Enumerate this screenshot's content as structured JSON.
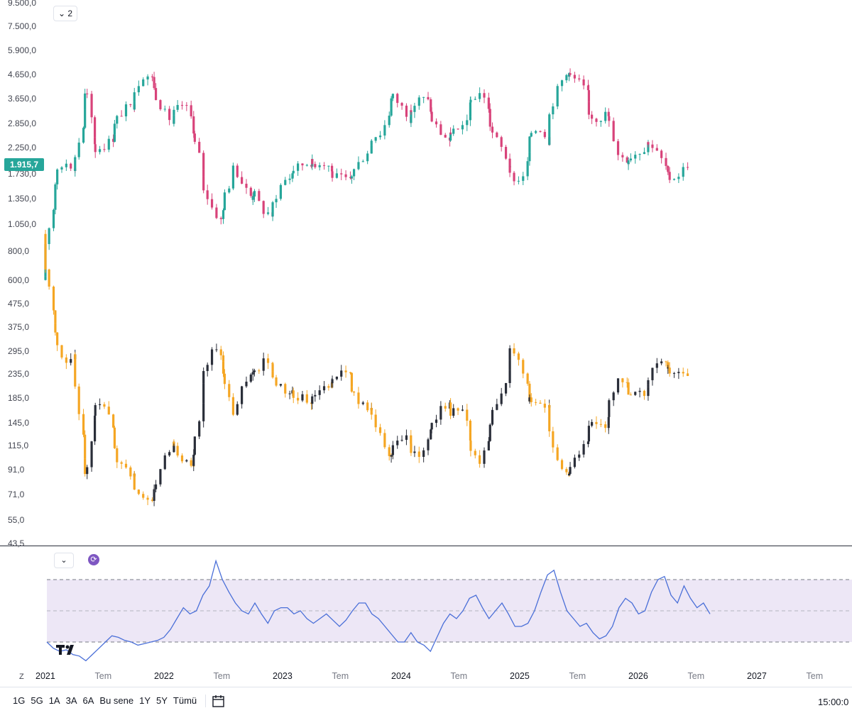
{
  "toolbar": {
    "series_count_label": "2",
    "last_price_label": "1.915,7"
  },
  "axis": {
    "y_ticks": [
      "9.500,0",
      "7.500,0",
      "5.900,0",
      "4.650,0",
      "3.650,0",
      "2.850,0",
      "2.250,0",
      "1.730,0",
      "1.350,0",
      "1.050,0",
      "800,0",
      "600,0",
      "475,0",
      "375,0",
      "295,0",
      "235,0",
      "185,0",
      "145,0",
      "115,0",
      "91,0",
      "71,0",
      "55,0",
      "43,5"
    ],
    "x_ticks": [
      {
        "label": "2021",
        "kind": "year"
      },
      {
        "label": "Tem",
        "kind": "month"
      },
      {
        "label": "2022",
        "kind": "year"
      },
      {
        "label": "Tem",
        "kind": "month"
      },
      {
        "label": "2023",
        "kind": "year"
      },
      {
        "label": "Tem",
        "kind": "month"
      },
      {
        "label": "2024",
        "kind": "year"
      },
      {
        "label": "Tem",
        "kind": "month"
      },
      {
        "label": "2025",
        "kind": "year"
      },
      {
        "label": "Tem",
        "kind": "month"
      },
      {
        "label": "2026",
        "kind": "year"
      },
      {
        "label": "Tem",
        "kind": "month"
      },
      {
        "label": "2027",
        "kind": "year"
      },
      {
        "label": "Tem",
        "kind": "month"
      }
    ]
  },
  "bottom_bar": {
    "ranges": [
      "1G",
      "5G",
      "1A",
      "3A",
      "6A",
      "Bu sene",
      "1Y",
      "5Y",
      "Tümü"
    ],
    "time": "15:00:0",
    "zoom_label": "Z"
  },
  "colors": {
    "up_top": "#26a69a",
    "down_top": "#d8437a",
    "up_bottom": "#2a2e39",
    "down_bottom": "#f5a623",
    "oscillator_line": "#4a6fd8",
    "oscillator_band": "#ede7f6"
  },
  "chart_data": [
    {
      "type": "candlestick",
      "scale": "log",
      "ylim": [
        43.5,
        9500
      ],
      "x_range": [
        "2021-01",
        "2027-12"
      ],
      "series": [
        {
          "name": "",
          "color_up": "#26a69a",
          "color_down": "#d8437a",
          "points": [
            [
              "2021-01",
              600
            ],
            [
              "2021-01",
              900
            ],
            [
              "2021-02",
              1300
            ],
            [
              "2021-02",
              1700
            ],
            [
              "2021-03",
              1950
            ],
            [
              "2021-04",
              1850
            ],
            [
              "2021-04",
              2100
            ],
            [
              "2021-05",
              2900
            ],
            [
              "2021-05",
              4100
            ],
            [
              "2021-06",
              2600
            ],
            [
              "2021-06",
              2200
            ],
            [
              "2021-07",
              2300
            ],
            [
              "2021-08",
              2500
            ],
            [
              "2021-08",
              2900
            ],
            [
              "2021-09",
              3300
            ],
            [
              "2021-10",
              3400
            ],
            [
              "2021-10",
              4000
            ],
            [
              "2021-11",
              4700
            ],
            [
              "2021-12",
              4400
            ],
            [
              "2021-12",
              3900
            ],
            [
              "2022-01",
              3200
            ],
            [
              "2022-02",
              2850
            ],
            [
              "2022-02",
              3200
            ],
            [
              "2022-03",
              3500
            ],
            [
              "2022-04",
              2900
            ],
            [
              "2022-04",
              2400
            ],
            [
              "2022-05",
              1850
            ],
            [
              "2022-05",
              1500
            ],
            [
              "2022-06",
              1200
            ],
            [
              "2022-07",
              1050
            ],
            [
              "2022-07",
              1350
            ],
            [
              "2022-08",
              1700
            ],
            [
              "2022-08",
              1900
            ],
            [
              "2022-09",
              1550
            ],
            [
              "2022-10",
              1350
            ],
            [
              "2022-10",
              1450
            ],
            [
              "2022-11",
              1200
            ],
            [
              "2022-12",
              1150
            ],
            [
              "2022-12",
              1300
            ],
            [
              "2023-01",
              1600
            ],
            [
              "2023-02",
              1700
            ],
            [
              "2023-02",
              1800
            ],
            [
              "2023-03",
              1900
            ],
            [
              "2023-04",
              1950
            ],
            [
              "2023-04",
              1900
            ],
            [
              "2023-05",
              1950
            ],
            [
              "2023-06",
              1850
            ],
            [
              "2023-06",
              1700
            ],
            [
              "2023-07",
              1650
            ],
            [
              "2023-08",
              1600
            ],
            [
              "2023-08",
              1750
            ],
            [
              "2023-09",
              2000
            ],
            [
              "2023-10",
              2300
            ],
            [
              "2023-10",
              2500
            ],
            [
              "2023-11",
              2600
            ],
            [
              "2023-12",
              3300
            ],
            [
              "2023-12",
              3800
            ],
            [
              "2024-01",
              3400
            ],
            [
              "2024-02",
              3000
            ],
            [
              "2024-02",
              3300
            ],
            [
              "2024-03",
              3700
            ],
            [
              "2024-04",
              3500
            ],
            [
              "2024-04",
              3000
            ],
            [
              "2024-05",
              2600
            ],
            [
              "2024-06",
              2400
            ],
            [
              "2024-06",
              2700
            ],
            [
              "2024-07",
              2600
            ],
            [
              "2024-08",
              3100
            ],
            [
              "2024-08",
              3600
            ],
            [
              "2024-09",
              3900
            ],
            [
              "2024-10",
              3300
            ],
            [
              "2024-10",
              2700
            ],
            [
              "2024-11",
              2300
            ],
            [
              "2024-12",
              1900
            ],
            [
              "2024-12",
              1700
            ],
            [
              "2025-01",
              1600
            ],
            [
              "2025-02",
              2000
            ],
            [
              "2025-02",
              2600
            ],
            [
              "2025-03",
              2750
            ],
            [
              "2025-04",
              2400
            ],
            [
              "2025-04",
              3200
            ],
            [
              "2025-05",
              4200
            ],
            [
              "2025-06",
              4800
            ],
            [
              "2025-06",
              4600
            ],
            [
              "2025-07",
              4300
            ],
            [
              "2025-08",
              3800
            ],
            [
              "2025-08",
              3100
            ],
            [
              "2025-09",
              3000
            ],
            [
              "2025-10",
              3200
            ],
            [
              "2025-10",
              2900
            ],
            [
              "2025-11",
              2100
            ],
            [
              "2025-12",
              1950
            ],
            [
              "2025-12",
              2050
            ],
            [
              "2026-01",
              2150
            ],
            [
              "2026-02",
              2300
            ],
            [
              "2026-02",
              2400
            ],
            [
              "2026-03",
              2100
            ],
            [
              "2026-04",
              1800
            ],
            [
              "2026-04",
              1650
            ],
            [
              "2026-05",
              1700
            ],
            [
              "2026-06",
              1915.7
            ]
          ]
        },
        {
          "name": "",
          "color_up": "#2a2e39",
          "color_down": "#f5a623",
          "points": [
            [
              "2021-01",
              950
            ],
            [
              "2021-01",
              650
            ],
            [
              "2021-02",
              430
            ],
            [
              "2021-02",
              330
            ],
            [
              "2021-03",
              260
            ],
            [
              "2021-04",
              280
            ],
            [
              "2021-04",
              200
            ],
            [
              "2021-05",
              120
            ],
            [
              "2021-05",
              80
            ],
            [
              "2021-06",
              140
            ],
            [
              "2021-06",
              175
            ],
            [
              "2021-07",
              165
            ],
            [
              "2021-08",
              135
            ],
            [
              "2021-08",
              105
            ],
            [
              "2021-09",
              90
            ],
            [
              "2021-10",
              88
            ],
            [
              "2021-10",
              75
            ],
            [
              "2021-11",
              66
            ],
            [
              "2021-12",
              70
            ],
            [
              "2021-12",
              76
            ],
            [
              "2022-01",
              100
            ],
            [
              "2022-02",
              115
            ],
            [
              "2022-02",
              110
            ],
            [
              "2022-03",
              100
            ],
            [
              "2022-04",
              88
            ],
            [
              "2022-04",
              115
            ],
            [
              "2022-05",
              180
            ],
            [
              "2022-05",
              245
            ],
            [
              "2022-06",
              310
            ],
            [
              "2022-07",
              280
            ],
            [
              "2022-07",
              220
            ],
            [
              "2022-08",
              180
            ],
            [
              "2022-08",
              160
            ],
            [
              "2022-09",
              210
            ],
            [
              "2022-10",
              240
            ],
            [
              "2022-10",
              230
            ],
            [
              "2022-11",
              270
            ],
            [
              "2022-12",
              260
            ],
            [
              "2022-12",
              225
            ],
            [
              "2023-01",
              200
            ],
            [
              "2023-02",
              195
            ],
            [
              "2023-02",
              190
            ],
            [
              "2023-03",
              185
            ],
            [
              "2023-04",
              180
            ],
            [
              "2023-04",
              195
            ],
            [
              "2023-05",
              200
            ],
            [
              "2023-06",
              210
            ],
            [
              "2023-06",
              230
            ],
            [
              "2023-07",
              245
            ],
            [
              "2023-08",
              225
            ],
            [
              "2023-08",
              200
            ],
            [
              "2023-09",
              175
            ],
            [
              "2023-10",
              165
            ],
            [
              "2023-10",
              150
            ],
            [
              "2023-11",
              125
            ],
            [
              "2023-12",
              100
            ],
            [
              "2023-12",
              110
            ],
            [
              "2024-01",
              125
            ],
            [
              "2024-02",
              120
            ],
            [
              "2024-02",
              110
            ],
            [
              "2024-03",
              105
            ],
            [
              "2024-04",
              125
            ],
            [
              "2024-04",
              145
            ],
            [
              "2024-05",
              165
            ],
            [
              "2024-06",
              175
            ],
            [
              "2024-06",
              160
            ],
            [
              "2024-07",
              170
            ],
            [
              "2024-08",
              135
            ],
            [
              "2024-08",
              110
            ],
            [
              "2024-09",
              100
            ],
            [
              "2024-10",
              125
            ],
            [
              "2024-10",
              155
            ],
            [
              "2024-11",
              190
            ],
            [
              "2024-12",
              240
            ],
            [
              "2024-12",
              300
            ],
            [
              "2025-01",
              280
            ],
            [
              "2025-02",
              190
            ],
            [
              "2025-02",
              180
            ],
            [
              "2025-03",
              170
            ],
            [
              "2025-04",
              175
            ],
            [
              "2025-04",
              130
            ],
            [
              "2025-05",
              95
            ],
            [
              "2025-06",
              85
            ],
            [
              "2025-06",
              90
            ],
            [
              "2025-07",
              105
            ],
            [
              "2025-08",
              125
            ],
            [
              "2025-08",
              150
            ],
            [
              "2025-09",
              140
            ],
            [
              "2025-10",
              130
            ],
            [
              "2025-10",
              175
            ],
            [
              "2025-11",
              220
            ],
            [
              "2025-12",
              215
            ],
            [
              "2025-12",
              195
            ],
            [
              "2026-01",
              190
            ],
            [
              "2026-02",
              200
            ],
            [
              "2026-02",
              230
            ],
            [
              "2026-03",
              270
            ],
            [
              "2026-04",
              255
            ],
            [
              "2026-04",
              240
            ],
            [
              "2026-05",
              230
            ],
            [
              "2026-06",
              232
            ]
          ]
        }
      ]
    },
    {
      "type": "line",
      "ylim": [
        0,
        100
      ],
      "bands": [
        30,
        50,
        70
      ],
      "series": [
        {
          "name": "",
          "color": "#4a6fd8",
          "values": [
            30,
            26,
            24,
            25,
            22,
            21,
            18,
            22,
            26,
            30,
            34,
            33,
            31,
            30,
            28,
            29,
            30,
            31,
            33,
            38,
            45,
            52,
            48,
            50,
            60,
            66,
            82,
            70,
            62,
            55,
            50,
            48,
            55,
            48,
            42,
            50,
            52,
            52,
            48,
            50,
            45,
            42,
            45,
            48,
            44,
            40,
            44,
            50,
            55,
            55,
            48,
            45,
            40,
            35,
            30,
            30,
            36,
            30,
            28,
            24,
            33,
            42,
            48,
            45,
            50,
            58,
            60,
            52,
            45,
            50,
            55,
            48,
            40,
            40,
            42,
            50,
            62,
            73,
            76,
            62,
            50,
            45,
            40,
            42,
            36,
            32,
            34,
            40,
            52,
            58,
            55,
            48,
            50,
            62,
            70,
            72,
            60,
            55,
            66,
            58,
            52,
            55,
            48
          ]
        }
      ]
    }
  ]
}
